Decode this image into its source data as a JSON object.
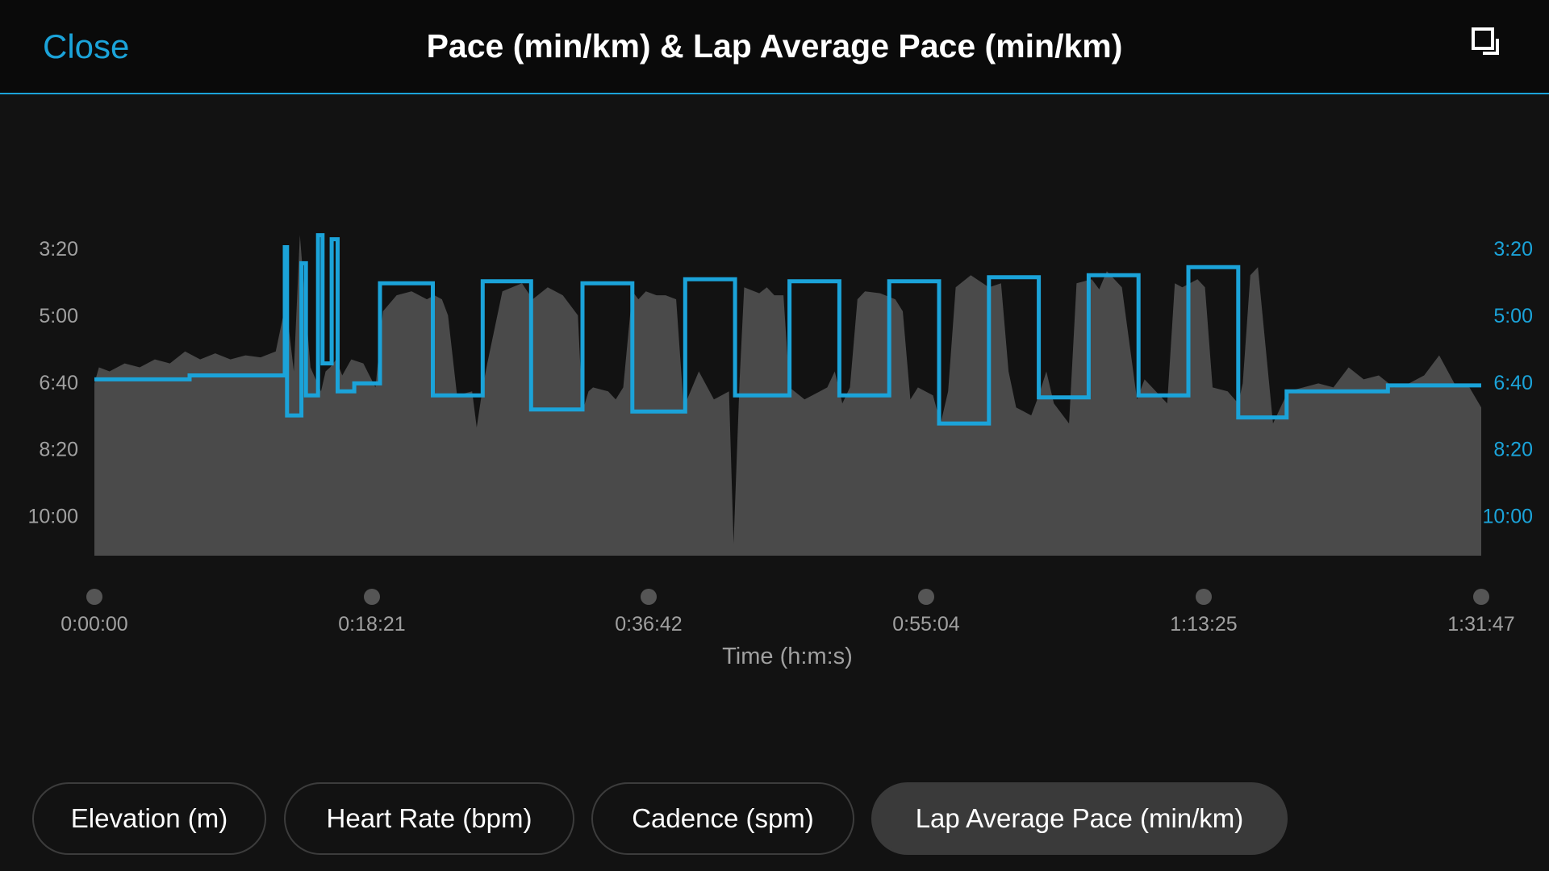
{
  "header": {
    "close_label": "Close",
    "title": "Pace (min/km) & Lap Average Pace (min/km)",
    "expand_icon": "expand-icon"
  },
  "colors": {
    "background": "#121212",
    "accent": "#1ba3d9",
    "pace_fill": "#4a4a4a",
    "axis_text": "#a0a0a0"
  },
  "chart_data": {
    "type": "area",
    "xlabel": "Time (h:m:s)",
    "x_ticks": [
      "0:00:00",
      "0:18:21",
      "0:36:42",
      "0:55:04",
      "1:13:25",
      "1:31:47"
    ],
    "xlim": [
      0,
      91.78
    ],
    "y_ticks": [
      "3:20",
      "5:00",
      "6:40",
      "8:20",
      "10:00"
    ],
    "y_ticks_right": [
      "3:20",
      "5:00",
      "6:40",
      "8:20",
      "10:00"
    ],
    "ylim": [
      11.0,
      1.8
    ],
    "y_inverted": true,
    "x_unit": "minutes",
    "y_unit": "min/km",
    "legend": [
      "Pace",
      "Lap Average Pace"
    ],
    "legend_position": "bottom",
    "series": [
      {
        "name": "Pace",
        "style": "area",
        "x": [
          0,
          0.3,
          1,
          2,
          3,
          4,
          5,
          6,
          7,
          8,
          9,
          10,
          11,
          12,
          12.5,
          12.6,
          12.8,
          13.2,
          13.6,
          14.3,
          15,
          15.3,
          15.6,
          16,
          16.4,
          17,
          17.8,
          18.6,
          19.1,
          20,
          21,
          22,
          22.5,
          23,
          23.4,
          24,
          25,
          25.3,
          25.7,
          26,
          27,
          28.3,
          29,
          30,
          31,
          32,
          32.3,
          32.7,
          33,
          34,
          34.5,
          35,
          35.6,
          36,
          36.5,
          37.2,
          37.8,
          38.5,
          39,
          40,
          41,
          42,
          42.3,
          42.7,
          43,
          44,
          44.5,
          45,
          45.6,
          46,
          47,
          48.5,
          49,
          49.5,
          50,
          50.5,
          51,
          52,
          53,
          53.5,
          54,
          54.5,
          55.5,
          56,
          56.5,
          57,
          58,
          59.2,
          60,
          60.5,
          61,
          62,
          62.5,
          63,
          63.5,
          64.5,
          65,
          66,
          66.5,
          67,
          68,
          69,
          69.5,
          70,
          71,
          71.5,
          72,
          73,
          73.5,
          74,
          75,
          75.7,
          76,
          76.5,
          77,
          78,
          79,
          80,
          81,
          82,
          83,
          84,
          85,
          86,
          87,
          88,
          89,
          90,
          91,
          91.78
        ],
        "y": [
          6.7,
          6.3,
          6.4,
          6.2,
          6.3,
          6.1,
          6.2,
          5.9,
          6.1,
          5.95,
          6.1,
          6.0,
          6.05,
          5.9,
          5.0,
          3.3,
          5.1,
          6.4,
          3.0,
          6.3,
          6.9,
          6.4,
          6.3,
          6.1,
          6.5,
          6.1,
          6.2,
          6.8,
          4.9,
          4.5,
          4.4,
          4.6,
          4.5,
          4.6,
          5.0,
          7.0,
          6.9,
          7.8,
          6.8,
          6.2,
          4.4,
          4.2,
          4.6,
          4.3,
          4.5,
          5.0,
          7.4,
          6.9,
          6.8,
          6.9,
          7.1,
          6.8,
          4.4,
          4.6,
          4.4,
          4.5,
          4.5,
          4.6,
          7.3,
          6.4,
          7.1,
          6.9,
          10.7,
          6.6,
          4.3,
          4.45,
          4.3,
          4.5,
          4.5,
          6.8,
          7.1,
          6.8,
          6.4,
          7.2,
          6.8,
          4.6,
          4.4,
          4.45,
          4.6,
          4.9,
          7.1,
          6.8,
          7.0,
          7.7,
          6.9,
          4.3,
          4.0,
          4.3,
          4.2,
          6.4,
          7.3,
          7.5,
          7.0,
          6.4,
          7.2,
          7.7,
          4.2,
          4.1,
          4.35,
          3.9,
          4.3,
          7.1,
          6.6,
          6.8,
          7.2,
          4.2,
          4.3,
          4.1,
          4.3,
          6.8,
          6.9,
          7.2,
          6.7,
          4.0,
          3.8,
          7.7,
          6.9,
          6.8,
          6.7,
          6.8,
          6.3,
          6.6,
          6.5,
          6.8,
          6.7,
          6.5,
          6.0,
          6.7,
          6.8,
          7.3
        ],
        "color": "#4a4a4a"
      },
      {
        "name": "Lap Average Pace",
        "style": "step",
        "x": [
          0,
          6.3,
          6.3,
          12.6,
          12.6,
          12.75,
          12.75,
          13.0,
          13.0,
          13.7,
          13.7,
          14.0,
          14.0,
          14.8,
          14.8,
          15.1,
          15.1,
          15.7,
          15.7,
          16.1,
          16.1,
          16.3,
          16.3,
          17.2,
          17.2,
          18.9,
          18.9,
          22.4,
          22.4,
          25.7,
          25.7,
          28.9,
          28.9,
          32.3,
          32.3,
          35.6,
          35.6,
          39.1,
          39.1,
          42.4,
          42.4,
          46.0,
          46.0,
          49.3,
          49.3,
          52.6,
          52.6,
          55.9,
          55.9,
          59.2,
          59.2,
          62.5,
          62.5,
          65.8,
          65.8,
          69.1,
          69.1,
          72.4,
          72.4,
          75.7,
          75.7,
          78.9,
          78.9,
          85.6,
          85.6,
          91.78
        ],
        "y": [
          6.6,
          6.6,
          6.5,
          6.5,
          3.3,
          3.3,
          7.5,
          7.5,
          7.5,
          7.5,
          3.7,
          3.7,
          7.0,
          7.0,
          3.0,
          3.0,
          6.2,
          6.2,
          3.1,
          3.1,
          6.9,
          6.9,
          6.9,
          6.9,
          6.7,
          6.7,
          4.2,
          4.2,
          7.0,
          7.0,
          4.15,
          4.15,
          7.35,
          7.35,
          4.2,
          4.2,
          7.4,
          7.4,
          4.1,
          4.1,
          7.0,
          7.0,
          4.15,
          4.15,
          7.0,
          7.0,
          4.15,
          4.15,
          7.7,
          7.7,
          4.05,
          4.05,
          7.05,
          7.05,
          4.0,
          4.0,
          7.0,
          7.0,
          3.8,
          3.8,
          7.55,
          7.55,
          6.9,
          6.9,
          6.75,
          6.75
        ],
        "color": "#1ba3d9"
      }
    ]
  },
  "tabs": [
    {
      "label": "Elevation (m)",
      "active": false
    },
    {
      "label": "Heart Rate (bpm)",
      "active": false
    },
    {
      "label": "Cadence (spm)",
      "active": false
    },
    {
      "label": "Lap Average Pace (min/km)",
      "active": true
    }
  ]
}
